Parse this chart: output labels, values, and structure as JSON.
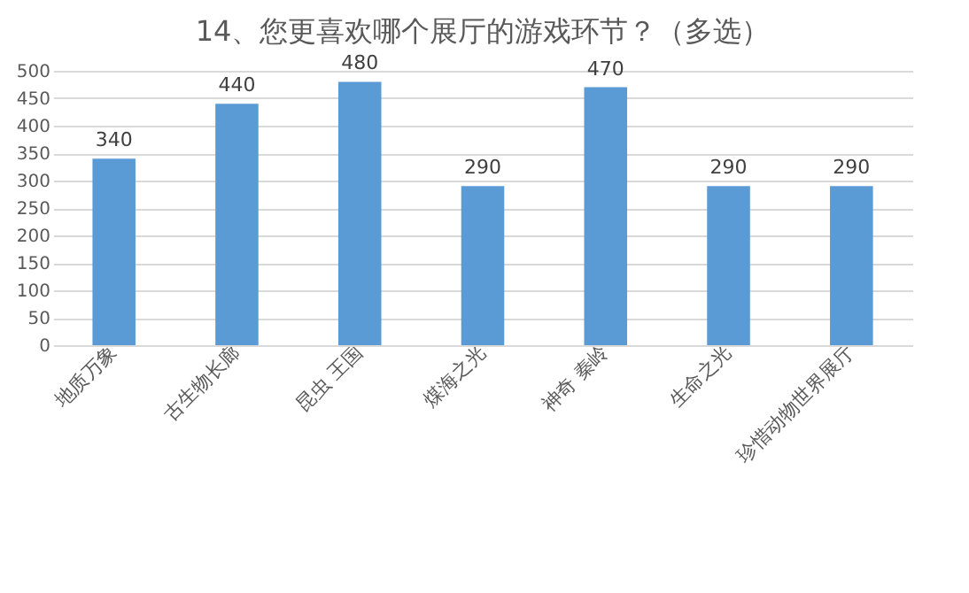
{
  "chart_data": {
    "type": "bar",
    "title": "14、您更喜欢哪个展厅的游戏环节？（多选）",
    "categories": [
      "地质万象",
      "古生物长廊",
      "昆虫 王国",
      "煤海之光",
      "神奇 秦岭",
      "生命之光",
      "珍惜动物世界展厅"
    ],
    "values": [
      340,
      440,
      480,
      290,
      470,
      290,
      290
    ],
    "color": "#5b9bd5",
    "ylim": [
      0,
      500
    ],
    "yticks": [
      0,
      50,
      100,
      150,
      200,
      250,
      300,
      350,
      400,
      450,
      500
    ],
    "grid": "y",
    "data_labels": true
  }
}
